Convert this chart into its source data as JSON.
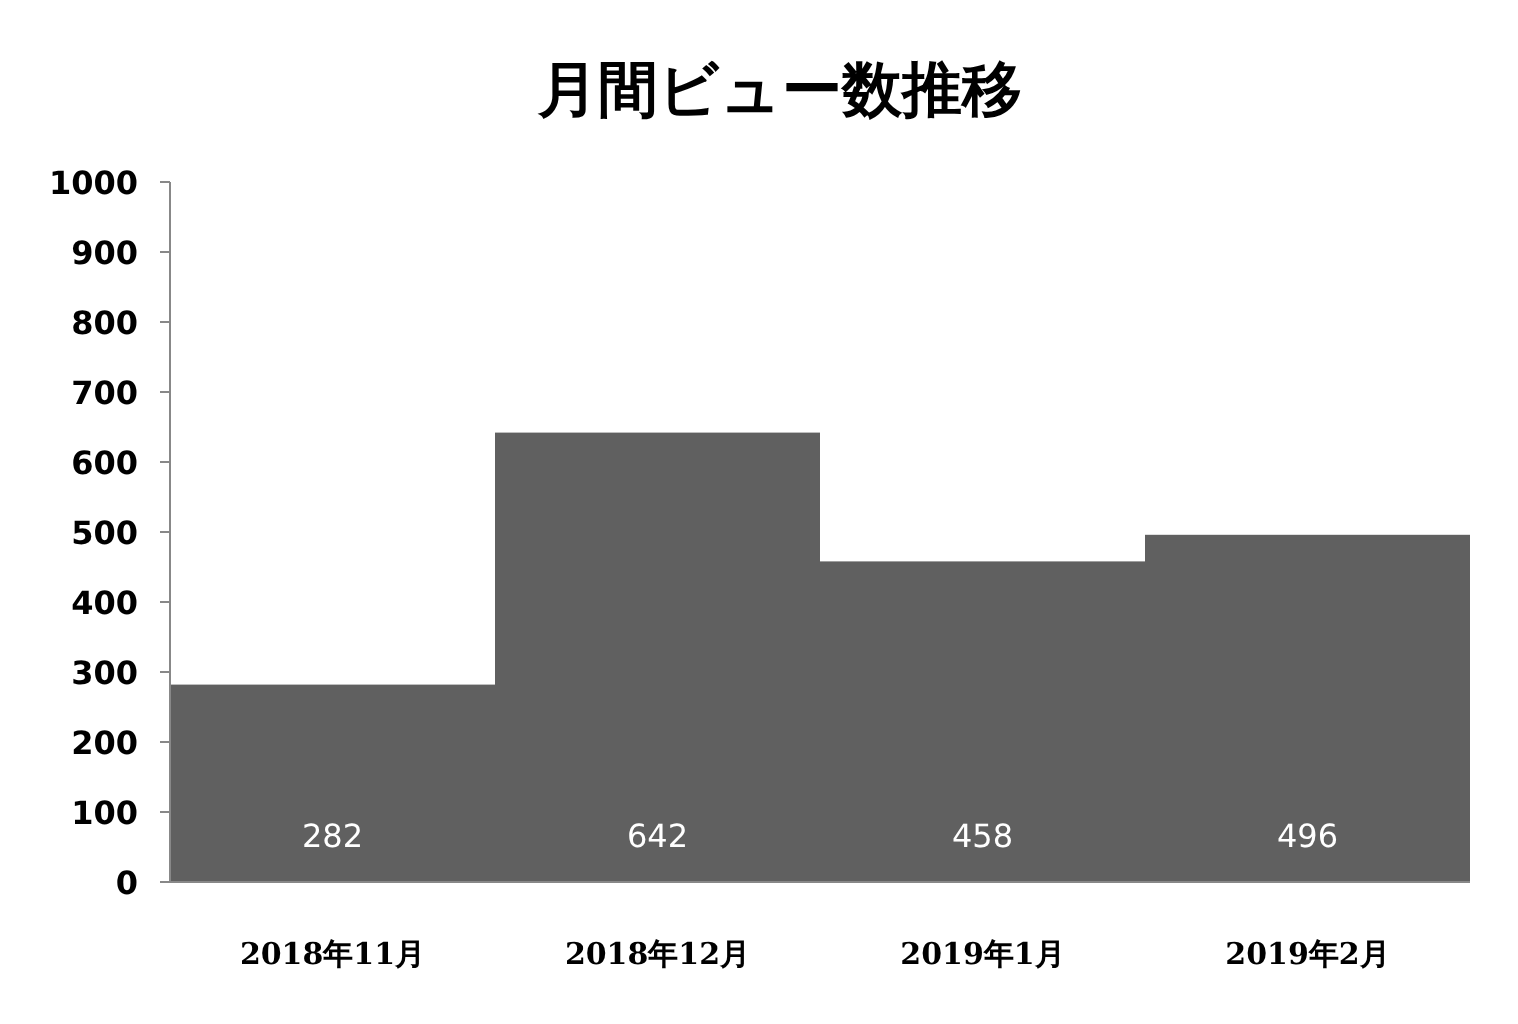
{
  "chart_data": {
    "type": "bar",
    "title": "月間ビュー数推移",
    "categories": [
      "2018年11月",
      "2018年12月",
      "2019年1月",
      "2019年2月"
    ],
    "values": [
      282,
      642,
      458,
      496
    ],
    "color": "#606060",
    "ylim": [
      0,
      1000
    ],
    "yticks": [
      0,
      100,
      200,
      300,
      400,
      500,
      600,
      700,
      800,
      900,
      1000
    ],
    "data_labels": true
  }
}
